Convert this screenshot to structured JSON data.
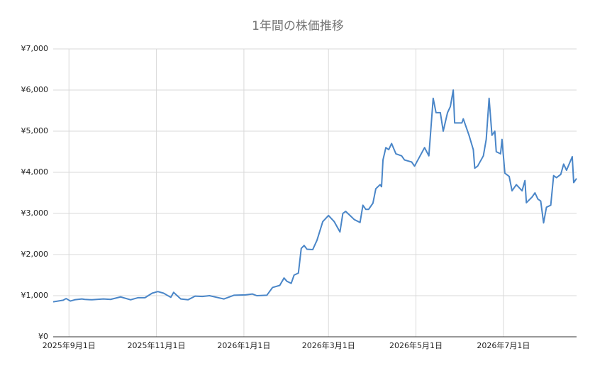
{
  "chart_data": {
    "type": "line",
    "title": "1年間の株価推移",
    "x": [
      "2025-08-21",
      "2025-08-28",
      "2025-08-30",
      "2025-09-02",
      "2025-09-05",
      "2025-09-10",
      "2025-09-12",
      "2025-09-17",
      "2025-09-25",
      "2025-09-30",
      "2025-10-07",
      "2025-10-14",
      "2025-10-19",
      "2025-10-24",
      "2025-10-29",
      "2025-11-02",
      "2025-11-06",
      "2025-11-11",
      "2025-11-13",
      "2025-11-18",
      "2025-11-23",
      "2025-11-28",
      "2025-12-03",
      "2025-12-08",
      "2025-12-13",
      "2025-12-18",
      "2025-12-25",
      "2026-01-02",
      "2026-01-07",
      "2026-01-10",
      "2026-01-17",
      "2026-01-21",
      "2026-01-26",
      "2026-01-29",
      "2026-01-31",
      "2026-02-03",
      "2026-02-05",
      "2026-02-08",
      "2026-02-10",
      "2026-02-12",
      "2026-02-14",
      "2026-02-18",
      "2026-02-21",
      "2026-02-25",
      "2026-03-01",
      "2026-03-05",
      "2026-03-09",
      "2026-03-11",
      "2026-03-13",
      "2026-03-16",
      "2026-03-19",
      "2026-03-23",
      "2026-03-25",
      "2026-03-27",
      "2026-03-29",
      "2026-04-01",
      "2026-04-03",
      "2026-04-06",
      "2026-04-07",
      "2026-04-08",
      "2026-04-10",
      "2026-04-12",
      "2026-04-14",
      "2026-04-17",
      "2026-04-21",
      "2026-04-23",
      "2026-04-28",
      "2026-04-30",
      "2026-05-07",
      "2026-05-10",
      "2026-05-13",
      "2026-05-15",
      "2026-05-18",
      "2026-05-20",
      "2026-05-23",
      "2026-05-25",
      "2026-05-27",
      "2026-05-28",
      "2026-06-02",
      "2026-06-03",
      "2026-06-07",
      "2026-06-10",
      "2026-06-11",
      "2026-06-13",
      "2026-06-17",
      "2026-06-19",
      "2026-06-21",
      "2026-06-23",
      "2026-06-25",
      "2026-06-26",
      "2026-06-29",
      "2026-06-30",
      "2026-07-02",
      "2026-07-05",
      "2026-07-07",
      "2026-07-10",
      "2026-07-14",
      "2026-07-16",
      "2026-07-17",
      "2026-07-21",
      "2026-07-23",
      "2026-07-25",
      "2026-07-27",
      "2026-07-29",
      "2026-07-31",
      "2026-08-03",
      "2026-08-05",
      "2026-08-07",
      "2026-08-10",
      "2026-08-12",
      "2026-08-14",
      "2026-08-18",
      "2026-08-19",
      "2026-08-21"
    ],
    "series": [
      {
        "color": "#4a86c8",
        "values": [
          850,
          890,
          930,
          870,
          900,
          920,
          910,
          900,
          920,
          910,
          970,
          900,
          950,
          950,
          1060,
          1100,
          1060,
          960,
          1080,
          920,
          900,
          990,
          980,
          1000,
          960,
          920,
          1010,
          1020,
          1040,
          1000,
          1010,
          1200,
          1250,
          1430,
          1350,
          1300,
          1500,
          1550,
          2150,
          2220,
          2130,
          2120,
          2350,
          2800,
          2950,
          2800,
          2550,
          3000,
          3050,
          2950,
          2850,
          2780,
          3200,
          3100,
          3100,
          3250,
          3600,
          3700,
          3650,
          4300,
          4600,
          4550,
          4700,
          4450,
          4400,
          4300,
          4250,
          4150,
          4600,
          4400,
          5800,
          5450,
          5450,
          5000,
          5450,
          5600,
          6000,
          5200,
          5200,
          5300,
          4900,
          4550,
          4100,
          4150,
          4400,
          4800,
          5800,
          4900,
          5000,
          4500,
          4450,
          4800,
          3980,
          3900,
          3550,
          3700,
          3550,
          3800,
          3260,
          3400,
          3500,
          3350,
          3300,
          2770,
          3150,
          3200,
          3920,
          3870,
          3950,
          4200,
          4050,
          4380,
          3750,
          3850
        ]
      }
    ],
    "xlim": [
      "2025-08-21",
      "2026-08-21"
    ],
    "xticks": [
      {
        "value": "2025-09-01",
        "label": "2025年9月1日"
      },
      {
        "value": "2025-11-01",
        "label": "2025年11月1日"
      },
      {
        "value": "2026-01-01",
        "label": "2026年1月1日"
      },
      {
        "value": "2026-03-01",
        "label": "2026年3月1日"
      },
      {
        "value": "2026-05-01",
        "label": "2026年5月1日"
      },
      {
        "value": "2026-07-01",
        "label": "2026年7月1日"
      }
    ],
    "ylim": [
      0,
      7000
    ],
    "yticks": [
      {
        "value": 0,
        "label": "¥0"
      },
      {
        "value": 1000,
        "label": "¥1,000"
      },
      {
        "value": 2000,
        "label": "¥2,000"
      },
      {
        "value": 3000,
        "label": "¥3,000"
      },
      {
        "value": 4000,
        "label": "¥4,000"
      },
      {
        "value": 5000,
        "label": "¥5,000"
      },
      {
        "value": 6000,
        "label": "¥6,000"
      },
      {
        "value": 7000,
        "label": "¥7,000"
      }
    ],
    "grid": true
  }
}
